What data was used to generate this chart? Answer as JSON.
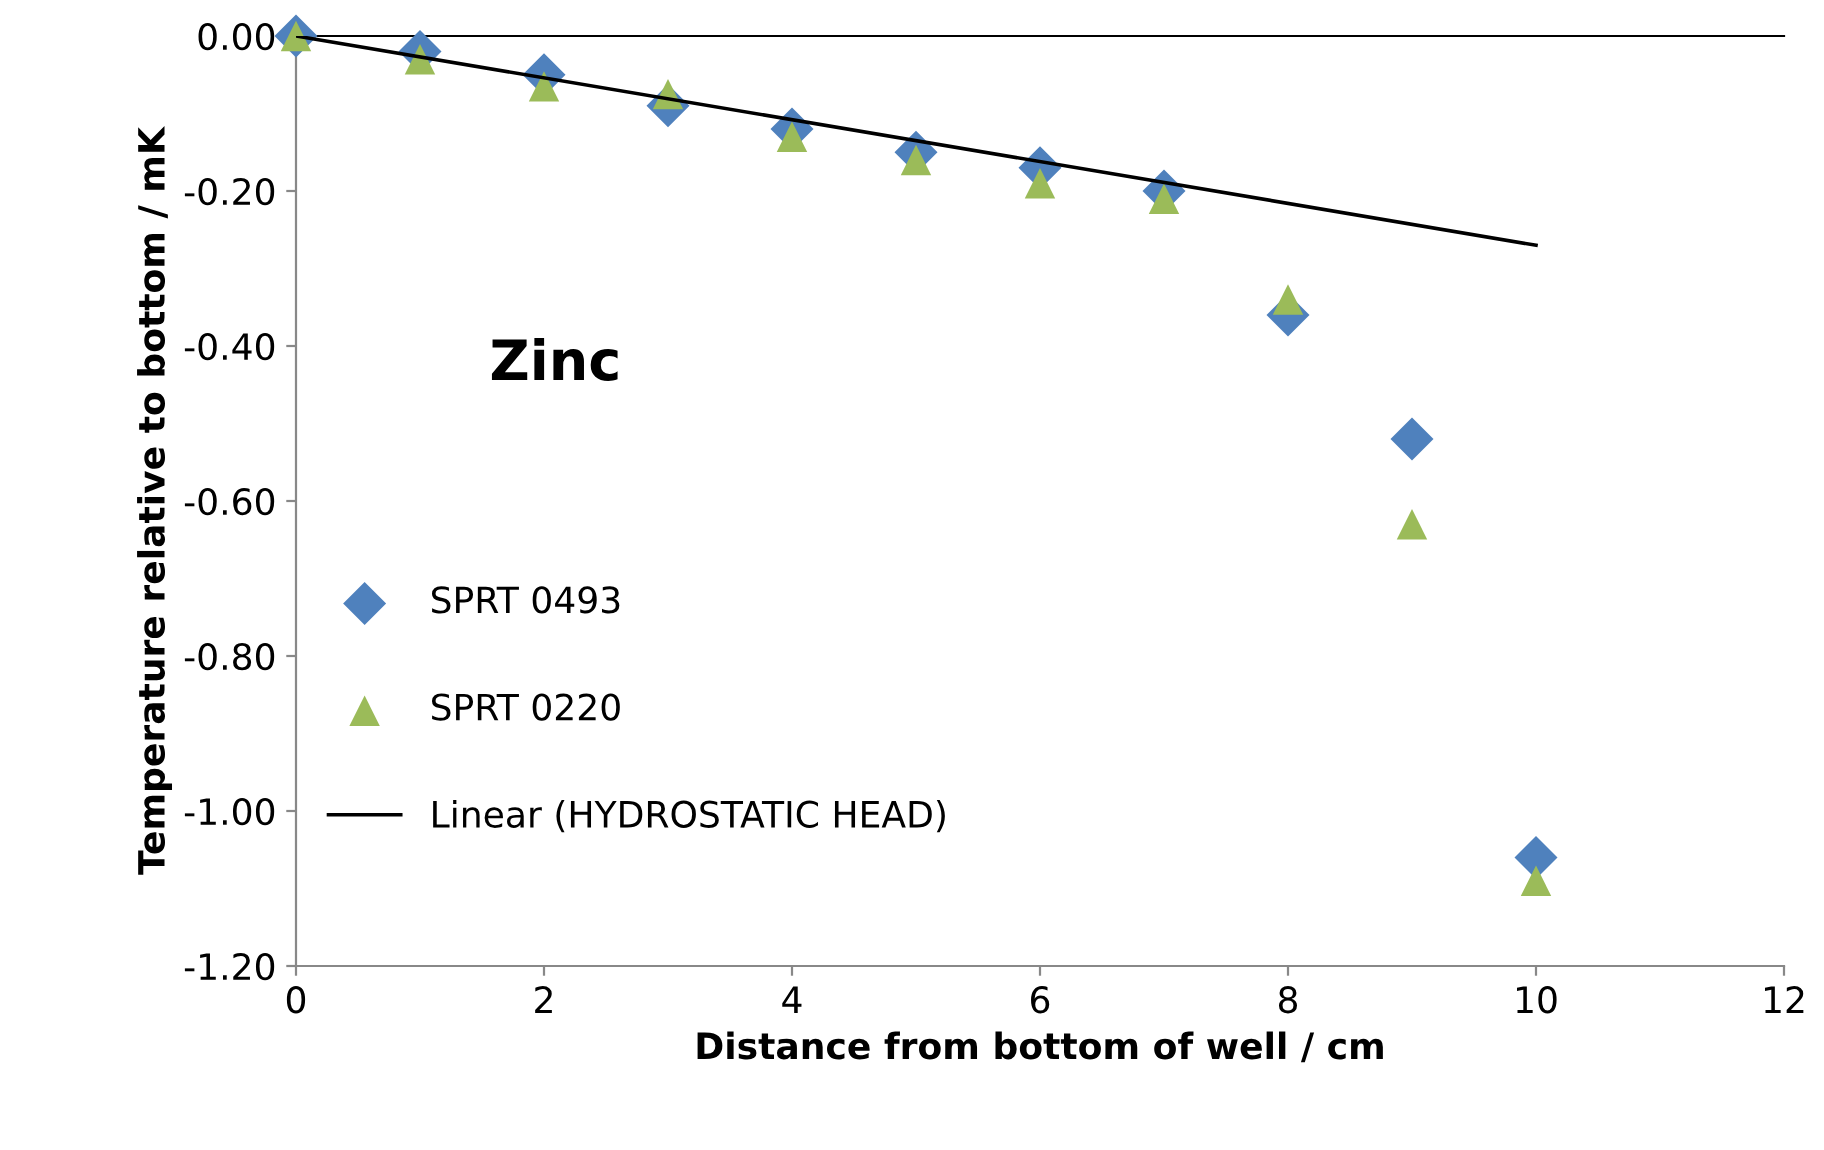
{
  "chart_data": {
    "type": "scatter",
    "xlabel": "Distance from bottom of well / cm",
    "ylabel": "Temperature relative to bottom / mK",
    "x": [
      0,
      1,
      2,
      3,
      4,
      5,
      6,
      7,
      8,
      9,
      10
    ],
    "series": [
      {
        "name": "SPRT 0493",
        "color": "#4f81bd",
        "marker": "diamond",
        "values": [
          0,
          -0.02,
          -0.05,
          -0.09,
          -0.12,
          -0.15,
          -0.17,
          -0.2,
          -0.36,
          -0.52,
          -1.06
        ]
      },
      {
        "name": "SPRT 0220",
        "color": "#9bbb59",
        "marker": "triangle",
        "values": [
          0,
          -0.03,
          -0.065,
          -0.075,
          -0.13,
          -0.16,
          -0.19,
          -0.21,
          -0.34,
          -0.63,
          -1.09
        ]
      },
      {
        "name": "Linear (HYDROSTATIC HEAD)",
        "type": "line",
        "color": "#000000",
        "marker": "none",
        "x": [
          0,
          10
        ],
        "values": [
          0,
          -0.27
        ]
      }
    ],
    "annotations": [
      "Zinc"
    ],
    "xlim": [
      0,
      12
    ],
    "xticks": [
      0,
      2,
      4,
      6,
      8,
      10,
      12
    ],
    "ylim": [
      -1.2,
      0
    ],
    "yticks": [
      {
        "value": 0,
        "label": "0.00"
      },
      {
        "value": -0.2,
        "label": "-0.20"
      },
      {
        "value": -0.4,
        "label": "-0.40"
      },
      {
        "value": -0.6,
        "label": "-0.60"
      },
      {
        "value": -0.8,
        "label": "-0.80"
      },
      {
        "value": -1.0,
        "label": "-1.00"
      },
      {
        "value": -1.2,
        "label": "-1.20"
      }
    ],
    "grid": false,
    "legend": "center left"
  }
}
